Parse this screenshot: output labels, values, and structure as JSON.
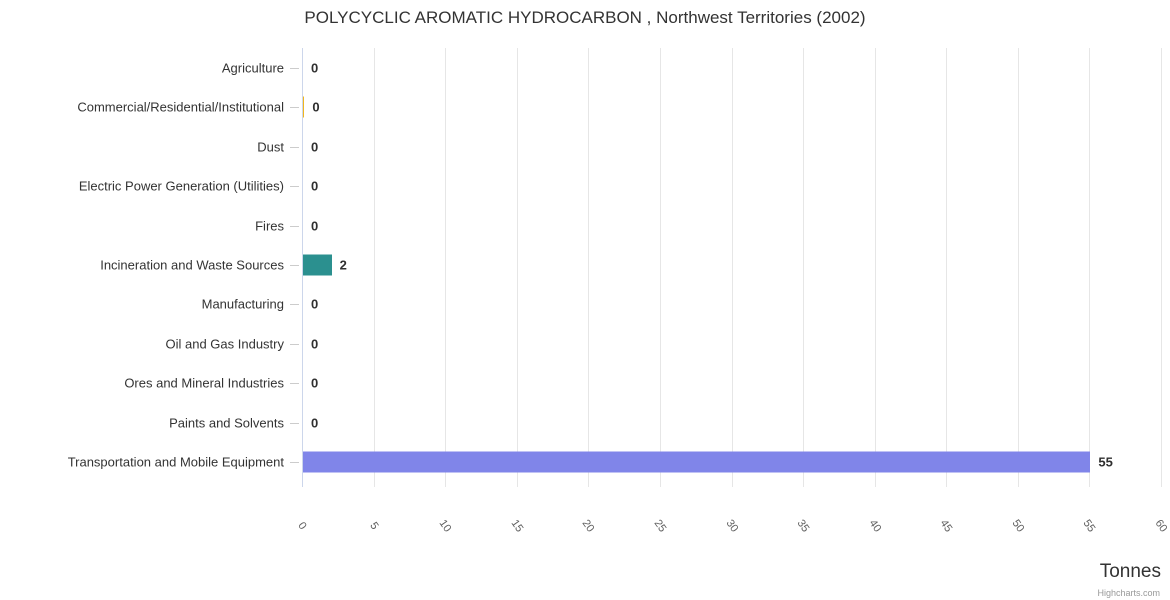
{
  "chart_data": {
    "type": "bar",
    "orientation": "horizontal",
    "title": "POLYCYCLIC AROMATIC HYDROCARBON , Northwest Territories (2002)",
    "categories": [
      "Agriculture",
      "Commercial/Residential/Institutional",
      "Dust",
      "Electric Power Generation (Utilities)",
      "Fires",
      "Incineration and Waste Sources",
      "Manufacturing",
      "Oil and Gas Industry",
      "Ores and Mineral Industries",
      "Paints and Solvents",
      "Transportation and Mobile Equipment"
    ],
    "values": [
      0,
      0.1,
      0,
      0,
      0,
      2,
      0,
      0,
      0,
      0,
      55
    ],
    "value_labels": [
      "0",
      "0",
      "0",
      "0",
      "0",
      "2",
      "0",
      "0",
      "0",
      "0",
      "55"
    ],
    "bar_colors": [
      null,
      "#f0b61e",
      null,
      null,
      null,
      "#2b908f",
      null,
      null,
      null,
      null,
      "#8085e9"
    ],
    "xlabel": "Tonnes",
    "xlim": [
      0,
      60
    ],
    "xticks": [
      0,
      5,
      10,
      15,
      20,
      25,
      30,
      35,
      40,
      45,
      50,
      55,
      60
    ],
    "tick_interval": 5,
    "grid": "vertical-gridlines-only",
    "legend": "none"
  },
  "credits_label": "Highcharts.com",
  "appearance": {
    "background": "#ffffff",
    "bar_teal": "#2b908f",
    "bar_purple": "#8085e9",
    "bar_gold": "#f0b61e",
    "gridline": "#e6e6e6",
    "axis_line": "#ccd6eb",
    "category_tick": "#cccccc",
    "title_text": "#333333",
    "category_text": "#333333",
    "value_text": "#2f2f2f",
    "xtick_text": "#606060",
    "axis_title_text": "#333333",
    "credits_text": "#999999"
  }
}
